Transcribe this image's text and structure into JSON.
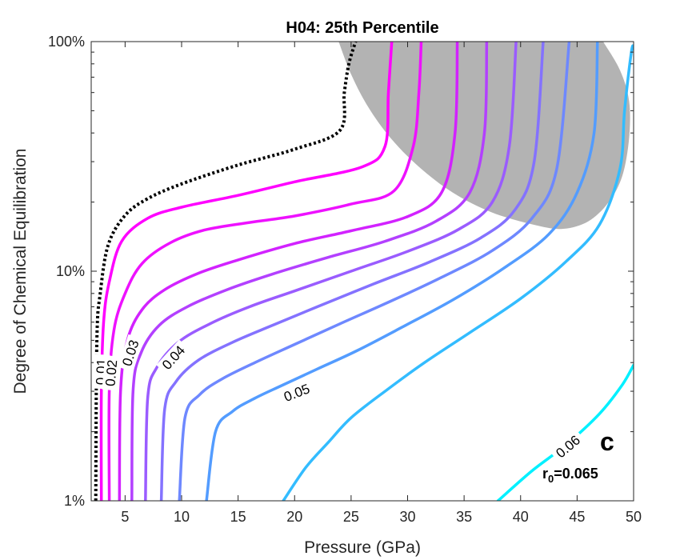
{
  "chart_data": {
    "type": "line",
    "title": "H04: 25th Percentile",
    "xlabel": "Pressure (GPa)",
    "ylabel": "Degree of Chemical Equilibration",
    "xlim": [
      2,
      50
    ],
    "ylim": [
      1,
      100
    ],
    "yscale": "log",
    "x_ticks": [
      5,
      10,
      15,
      20,
      25,
      30,
      35,
      40,
      45,
      50
    ],
    "y_ticks": [
      {
        "value": 1,
        "label": "1%"
      },
      {
        "value": 10,
        "label": "10%"
      },
      {
        "value": 100,
        "label": "100%"
      }
    ],
    "grid": false,
    "panel_letter": "c",
    "parameter_label": {
      "prefix": "r",
      "subscript": "0",
      "suffix": "=0.065"
    },
    "shaded_region": {
      "color": "#b3b3b3",
      "points": [
        [
          23.9,
          100
        ],
        [
          25,
          72
        ],
        [
          26.5,
          52
        ],
        [
          28.5,
          38
        ],
        [
          31,
          28.5
        ],
        [
          34,
          22
        ],
        [
          37.5,
          18
        ],
        [
          41.5,
          15.8
        ],
        [
          43.8,
          15.3
        ],
        [
          46,
          16.5
        ],
        [
          47.8,
          20
        ],
        [
          49,
          26
        ],
        [
          49.6,
          38
        ],
        [
          49.6,
          55
        ],
        [
          48.8,
          75
        ],
        [
          47.3,
          100
        ]
      ]
    },
    "contours": [
      {
        "level": 0.0,
        "label": "",
        "color": "#000000",
        "dashed": true,
        "points": [
          [
            2.4,
            1
          ],
          [
            2.5,
            5
          ],
          [
            2.8,
            8
          ],
          [
            3.5,
            13
          ],
          [
            5,
            17.5
          ],
          [
            7,
            20.7
          ],
          [
            10,
            24
          ],
          [
            15,
            29
          ],
          [
            20,
            34
          ],
          [
            24,
            41
          ],
          [
            24.4,
            60
          ],
          [
            24.8,
            80
          ],
          [
            25.4,
            100
          ]
        ]
      },
      {
        "level": 0.01,
        "label": "0.01",
        "color": "#ff00ff",
        "dashed": false,
        "points": [
          [
            2.9,
            1
          ],
          [
            2.9,
            3
          ],
          [
            3.1,
            6
          ],
          [
            3.6,
            9
          ],
          [
            4.7,
            13.5
          ],
          [
            7,
            17
          ],
          [
            10,
            19
          ],
          [
            15,
            21.4
          ],
          [
            20,
            24.5
          ],
          [
            26,
            28.5
          ],
          [
            28,
            35
          ],
          [
            28.3,
            60
          ],
          [
            28.6,
            100
          ]
        ]
      },
      {
        "level": 0.02,
        "label": "0.02",
        "color": "#ee11ff",
        "dashed": false,
        "points": [
          [
            3.6,
            1
          ],
          [
            3.6,
            3
          ],
          [
            4,
            5.5
          ],
          [
            5,
            8
          ],
          [
            6.5,
            10.8
          ],
          [
            9,
            13.3
          ],
          [
            12,
            15.1
          ],
          [
            16,
            16.3
          ],
          [
            20,
            17.4
          ],
          [
            25,
            19.6
          ],
          [
            28.8,
            22.4
          ],
          [
            30.5,
            35
          ],
          [
            31,
            60
          ],
          [
            31.2,
            100
          ]
        ]
      },
      {
        "level": 0.03,
        "label": "0.03",
        "color": "#d222ff",
        "dashed": false,
        "points": [
          [
            4.5,
            1
          ],
          [
            4.6,
            3
          ],
          [
            5.2,
            5
          ],
          [
            6.5,
            6.8
          ],
          [
            8.5,
            8.3
          ],
          [
            11.5,
            9.8
          ],
          [
            15,
            11.2
          ],
          [
            20,
            13.2
          ],
          [
            25,
            15
          ],
          [
            30,
            17.3
          ],
          [
            33,
            22
          ],
          [
            34.2,
            40
          ],
          [
            34.4,
            100
          ]
        ]
      },
      {
        "level": 0.035,
        "label": "",
        "color": "#b340ff",
        "dashed": false,
        "points": [
          [
            5.6,
            1
          ],
          [
            5.7,
            3
          ],
          [
            6.4,
            4.4
          ],
          [
            8,
            5.8
          ],
          [
            10.5,
            7
          ],
          [
            14,
            8.3
          ],
          [
            18,
            9.7
          ],
          [
            23,
            11.5
          ],
          [
            28,
            13.5
          ],
          [
            32.5,
            16.5
          ],
          [
            35.5,
            22
          ],
          [
            36.8,
            40
          ],
          [
            37,
            100
          ]
        ]
      },
      {
        "level": 0.04,
        "label": "0.04",
        "color": "#9a5cff",
        "dashed": false,
        "points": [
          [
            6.8,
            1
          ],
          [
            7,
            2.8
          ],
          [
            7.8,
            3.8
          ],
          [
            9.7,
            4.9
          ],
          [
            12.5,
            5.9
          ],
          [
            16,
            7
          ],
          [
            20,
            8.2
          ],
          [
            25,
            10
          ],
          [
            30,
            12.2
          ],
          [
            34.5,
            15.2
          ],
          [
            37.5,
            20
          ],
          [
            39,
            35
          ],
          [
            39.6,
            100
          ]
        ]
      },
      {
        "level": 0.0425,
        "label": "",
        "color": "#8472ff",
        "dashed": false,
        "points": [
          [
            8.2,
            1
          ],
          [
            8.5,
            2.5
          ],
          [
            9.5,
            3.3
          ],
          [
            11.5,
            4.1
          ],
          [
            14.5,
            4.9
          ],
          [
            18,
            5.8
          ],
          [
            22,
            7
          ],
          [
            27,
            8.8
          ],
          [
            32,
            11
          ],
          [
            36.5,
            14
          ],
          [
            39.5,
            18.5
          ],
          [
            41.2,
            30
          ],
          [
            42,
            100
          ]
        ]
      },
      {
        "level": 0.045,
        "label": "",
        "color": "#6e88ff",
        "dashed": false,
        "points": [
          [
            9.8,
            1
          ],
          [
            10.3,
            2.3
          ],
          [
            11.6,
            2.9
          ],
          [
            13.6,
            3.4
          ],
          [
            16.5,
            4
          ],
          [
            20,
            4.8
          ],
          [
            24,
            5.9
          ],
          [
            28.5,
            7.4
          ],
          [
            33,
            9.4
          ],
          [
            37.5,
            12.3
          ],
          [
            41,
            17
          ],
          [
            43.2,
            28
          ],
          [
            44.3,
            100
          ]
        ]
      },
      {
        "level": 0.05,
        "label": "0.05",
        "color": "#539cff",
        "dashed": false,
        "points": [
          [
            12.2,
            1
          ],
          [
            13,
            2
          ],
          [
            14.5,
            2.45
          ],
          [
            16.5,
            2.8
          ],
          [
            19,
            3.2
          ],
          [
            22,
            3.75
          ],
          [
            25.5,
            4.5
          ],
          [
            29.5,
            5.7
          ],
          [
            34,
            7.5
          ],
          [
            38.5,
            10.3
          ],
          [
            42.5,
            14.5
          ],
          [
            45,
            22
          ],
          [
            46.5,
            40
          ],
          [
            46.8,
            100
          ]
        ]
      },
      {
        "level": 0.055,
        "label": "",
        "color": "#33bcff",
        "dashed": false,
        "points": [
          [
            19,
            1
          ],
          [
            21,
            1.4
          ],
          [
            23,
            1.8
          ],
          [
            25,
            2.3
          ],
          [
            28,
            3
          ],
          [
            31.5,
            4
          ],
          [
            35.5,
            5.4
          ],
          [
            40,
            7.6
          ],
          [
            44,
            11
          ],
          [
            47,
            16
          ],
          [
            48.8,
            28
          ],
          [
            49.2,
            50
          ],
          [
            49.8,
            90
          ],
          [
            50,
            95
          ]
        ]
      },
      {
        "level": 0.06,
        "label": "0.06",
        "color": "#00f0ff",
        "dashed": false,
        "points": [
          [
            38,
            1
          ],
          [
            41,
            1.35
          ],
          [
            44,
            1.75
          ],
          [
            47,
            2.4
          ],
          [
            49,
            3.2
          ],
          [
            50,
            3.9
          ]
        ]
      }
    ],
    "contour_labels": [
      {
        "text": "0.01",
        "x": 2.9,
        "y": 3.65,
        "angle": -88
      },
      {
        "text": "0.02",
        "x": 3.8,
        "y": 3.6,
        "angle": -85
      },
      {
        "text": "0.03",
        "x": 5.5,
        "y": 4.4,
        "angle": -72
      },
      {
        "text": "0.04",
        "x": 9.3,
        "y": 4.2,
        "angle": -48
      },
      {
        "text": "0.05",
        "x": 20.2,
        "y": 2.95,
        "angle": -21
      },
      {
        "text": "0.06",
        "x": 44.2,
        "y": 1.72,
        "angle": -40
      }
    ]
  }
}
